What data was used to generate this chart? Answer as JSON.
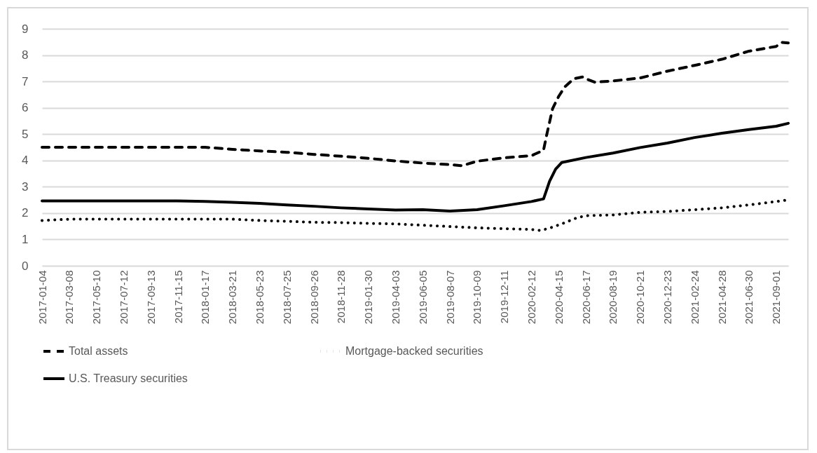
{
  "chart_data": {
    "type": "line",
    "xlim": [
      "2017-01-04",
      "2021-09-29"
    ],
    "ylim": [
      0,
      9
    ],
    "yticks": [
      0,
      1,
      2,
      3,
      4,
      5,
      6,
      7,
      8,
      9
    ],
    "xticks": [
      "2017-01-04",
      "2017-03-08",
      "2017-05-10",
      "2017-07-12",
      "2017-09-13",
      "2017-11-15",
      "2018-01-17",
      "2018-03-21",
      "2018-05-23",
      "2018-07-25",
      "2018-09-26",
      "2018-11-28",
      "2019-01-30",
      "2019-04-03",
      "2019-06-05",
      "2019-08-07",
      "2019-10-09",
      "2019-12-11",
      "2020-02-12",
      "2020-04-15",
      "2020-06-17",
      "2020-08-19",
      "2020-10-21",
      "2020-12-23",
      "2021-02-24",
      "2021-04-28",
      "2021-06-30",
      "2021-09-01"
    ],
    "grid": "y",
    "legend": "bottom",
    "marker": "none",
    "series": [
      {
        "name": "Total assets",
        "color": "#000000",
        "line_style": "dashed",
        "x": [
          "2017-01-04",
          "2017-03-08",
          "2017-05-10",
          "2017-07-12",
          "2017-09-13",
          "2017-11-15",
          "2018-01-17",
          "2018-03-21",
          "2018-05-23",
          "2018-07-25",
          "2018-09-26",
          "2018-11-28",
          "2019-01-30",
          "2019-04-03",
          "2019-06-05",
          "2019-08-07",
          "2019-09-04",
          "2019-10-09",
          "2019-12-11",
          "2020-02-12",
          "2020-03-11",
          "2020-03-18",
          "2020-04-01",
          "2020-04-15",
          "2020-04-29",
          "2020-05-20",
          "2020-06-10",
          "2020-06-17",
          "2020-07-08",
          "2020-08-19",
          "2020-10-21",
          "2020-12-23",
          "2021-02-24",
          "2021-04-28",
          "2021-06-30",
          "2021-09-01",
          "2021-09-15",
          "2021-09-29"
        ],
        "values": [
          4.5,
          4.5,
          4.5,
          4.5,
          4.5,
          4.5,
          4.5,
          4.42,
          4.36,
          4.31,
          4.23,
          4.16,
          4.08,
          3.98,
          3.9,
          3.84,
          3.8,
          3.97,
          4.1,
          4.18,
          4.39,
          4.95,
          5.97,
          6.43,
          6.79,
          7.1,
          7.17,
          7.1,
          6.97,
          7.02,
          7.13,
          7.39,
          7.61,
          7.84,
          8.15,
          8.33,
          8.48,
          8.46
        ]
      },
      {
        "name": "Mortgage-backed securities",
        "color": "#000000",
        "line_style": "dotted",
        "x": [
          "2017-01-04",
          "2017-03-08",
          "2017-05-10",
          "2017-07-12",
          "2017-09-13",
          "2017-11-15",
          "2018-01-17",
          "2018-03-21",
          "2018-05-23",
          "2018-07-25",
          "2018-09-26",
          "2018-11-28",
          "2019-01-30",
          "2019-04-03",
          "2019-06-05",
          "2019-08-07",
          "2019-10-09",
          "2019-12-11",
          "2020-02-12",
          "2020-03-04",
          "2020-03-25",
          "2020-04-22",
          "2020-05-27",
          "2020-06-17",
          "2020-08-19",
          "2020-10-21",
          "2020-12-23",
          "2021-02-24",
          "2021-04-28",
          "2021-06-30",
          "2021-09-01",
          "2021-09-29"
        ],
        "values": [
          1.72,
          1.77,
          1.77,
          1.77,
          1.77,
          1.77,
          1.77,
          1.77,
          1.72,
          1.69,
          1.65,
          1.64,
          1.61,
          1.59,
          1.54,
          1.49,
          1.44,
          1.41,
          1.38,
          1.34,
          1.43,
          1.59,
          1.82,
          1.9,
          1.93,
          2.03,
          2.06,
          2.13,
          2.2,
          2.31,
          2.44,
          2.5
        ]
      },
      {
        "name": "U.S. Treasury securities",
        "color": "#000000",
        "line_style": "solid",
        "x": [
          "2017-01-04",
          "2017-03-08",
          "2017-05-10",
          "2017-07-12",
          "2017-09-13",
          "2017-11-15",
          "2018-01-17",
          "2018-03-21",
          "2018-05-23",
          "2018-07-25",
          "2018-09-26",
          "2018-11-28",
          "2019-01-30",
          "2019-04-03",
          "2019-06-05",
          "2019-08-07",
          "2019-10-09",
          "2019-12-11",
          "2020-02-12",
          "2020-03-11",
          "2020-03-25",
          "2020-04-08",
          "2020-04-22",
          "2020-06-17",
          "2020-08-19",
          "2020-10-21",
          "2020-12-23",
          "2021-02-24",
          "2021-04-28",
          "2021-06-30",
          "2021-09-01",
          "2021-09-29"
        ],
        "values": [
          2.46,
          2.46,
          2.46,
          2.46,
          2.46,
          2.46,
          2.44,
          2.41,
          2.37,
          2.31,
          2.26,
          2.2,
          2.16,
          2.12,
          2.13,
          2.08,
          2.13,
          2.28,
          2.44,
          2.54,
          3.21,
          3.67,
          3.92,
          4.11,
          4.28,
          4.49,
          4.66,
          4.87,
          5.03,
          5.17,
          5.3,
          5.41
        ]
      }
    ]
  }
}
